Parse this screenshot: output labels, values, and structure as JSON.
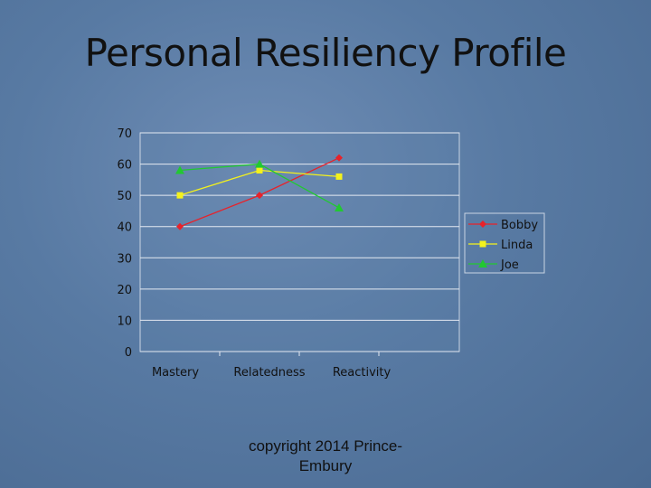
{
  "slide": {
    "title": "Personal Resiliency Profile",
    "footer_line1": "copyright 2014  Prince-",
    "footer_line2": "Embury"
  },
  "chart_data": {
    "type": "line",
    "categories": [
      "Mastery",
      "Relatedness",
      "Reactivity"
    ],
    "ylim": [
      0,
      70
    ],
    "yticks": [
      0,
      10,
      20,
      30,
      40,
      50,
      60,
      70
    ],
    "grid": true,
    "legend_position": "right",
    "series": [
      {
        "name": "Bobby",
        "values": [
          40,
          50,
          62
        ],
        "color": "#e8222a",
        "marker": "diamond"
      },
      {
        "name": "Linda",
        "values": [
          50,
          58,
          56
        ],
        "color": "#f4f21c",
        "marker": "square"
      },
      {
        "name": "Joe",
        "values": [
          58,
          60,
          46
        ],
        "color": "#22c832",
        "marker": "triangle"
      }
    ]
  }
}
